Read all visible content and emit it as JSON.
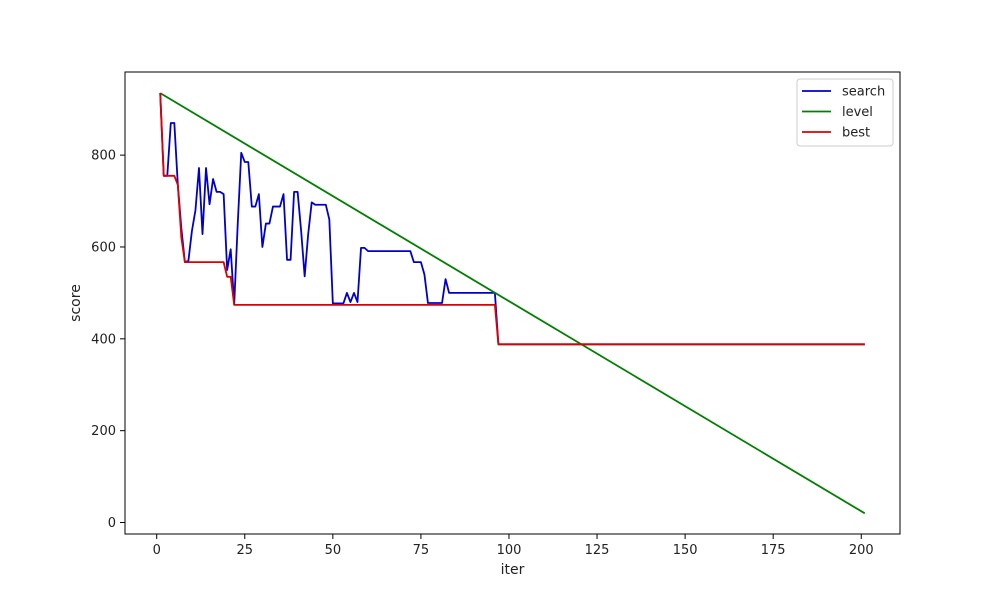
{
  "chart_data": {
    "type": "line",
    "title": "",
    "xlabel": "iter",
    "ylabel": "score",
    "xlim": [
      -9,
      211
    ],
    "ylim": [
      -25,
      981
    ],
    "xticks": [
      0,
      25,
      50,
      75,
      100,
      125,
      150,
      175,
      200
    ],
    "yticks": [
      0,
      200,
      400,
      600,
      800
    ],
    "grid": false,
    "legend_position": "top-right",
    "series": [
      {
        "name": "search",
        "color": "#0000cc",
        "points": [
          [
            1,
            935
          ],
          [
            2,
            755
          ],
          [
            3,
            755
          ],
          [
            4,
            870
          ],
          [
            5,
            870
          ],
          [
            6,
            735
          ],
          [
            7,
            640
          ],
          [
            8,
            567
          ],
          [
            9,
            570
          ],
          [
            10,
            635
          ],
          [
            11,
            680
          ],
          [
            12,
            772
          ],
          [
            13,
            628
          ],
          [
            14,
            772
          ],
          [
            15,
            693
          ],
          [
            16,
            748
          ],
          [
            17,
            720
          ],
          [
            18,
            720
          ],
          [
            19,
            715
          ],
          [
            20,
            550
          ],
          [
            21,
            595
          ],
          [
            22,
            475
          ],
          [
            23,
            650
          ],
          [
            24,
            805
          ],
          [
            25,
            785
          ],
          [
            26,
            785
          ],
          [
            27,
            688
          ],
          [
            28,
            688
          ],
          [
            29,
            715
          ],
          [
            30,
            600
          ],
          [
            31,
            651
          ],
          [
            32,
            651
          ],
          [
            33,
            688
          ],
          [
            34,
            688
          ],
          [
            35,
            688
          ],
          [
            36,
            715
          ],
          [
            37,
            572
          ],
          [
            38,
            572
          ],
          [
            39,
            720
          ],
          [
            40,
            720
          ],
          [
            41,
            635
          ],
          [
            42,
            536
          ],
          [
            43,
            628
          ],
          [
            44,
            697
          ],
          [
            45,
            692
          ],
          [
            46,
            692
          ],
          [
            47,
            692
          ],
          [
            48,
            692
          ],
          [
            49,
            660
          ],
          [
            50,
            477
          ],
          [
            51,
            477
          ],
          [
            52,
            477
          ],
          [
            53,
            477
          ],
          [
            54,
            500
          ],
          [
            55,
            480
          ],
          [
            56,
            500
          ],
          [
            57,
            480
          ],
          [
            58,
            598
          ],
          [
            59,
            598
          ],
          [
            60,
            591
          ],
          [
            61,
            591
          ],
          [
            62,
            591
          ],
          [
            63,
            591
          ],
          [
            64,
            591
          ],
          [
            65,
            591
          ],
          [
            66,
            591
          ],
          [
            67,
            591
          ],
          [
            68,
            591
          ],
          [
            69,
            591
          ],
          [
            70,
            591
          ],
          [
            71,
            591
          ],
          [
            72,
            591
          ],
          [
            73,
            567
          ],
          [
            74,
            567
          ],
          [
            75,
            567
          ],
          [
            76,
            540
          ],
          [
            77,
            478
          ],
          [
            78,
            478
          ],
          [
            79,
            478
          ],
          [
            80,
            478
          ],
          [
            81,
            478
          ],
          [
            82,
            530
          ],
          [
            83,
            500
          ],
          [
            84,
            500
          ],
          [
            85,
            500
          ],
          [
            86,
            500
          ],
          [
            87,
            500
          ],
          [
            88,
            500
          ],
          [
            89,
            500
          ],
          [
            90,
            500
          ],
          [
            91,
            500
          ],
          [
            92,
            500
          ],
          [
            93,
            500
          ],
          [
            94,
            500
          ],
          [
            95,
            500
          ],
          [
            96,
            500
          ],
          [
            97,
            388
          ],
          [
            98,
            388
          ],
          [
            201,
            388
          ]
        ]
      },
      {
        "name": "level",
        "color": "#008000",
        "points": [
          [
            1,
            935
          ],
          [
            201,
            20
          ]
        ]
      },
      {
        "name": "best",
        "color": "#dd0000",
        "points": [
          [
            1,
            935
          ],
          [
            2,
            755
          ],
          [
            3,
            755
          ],
          [
            4,
            755
          ],
          [
            5,
            755
          ],
          [
            6,
            735
          ],
          [
            7,
            620
          ],
          [
            8,
            567
          ],
          [
            9,
            567
          ],
          [
            19,
            567
          ],
          [
            20,
            535
          ],
          [
            21,
            535
          ],
          [
            22,
            474
          ],
          [
            96,
            474
          ],
          [
            97,
            388
          ],
          [
            201,
            388
          ]
        ]
      }
    ]
  }
}
